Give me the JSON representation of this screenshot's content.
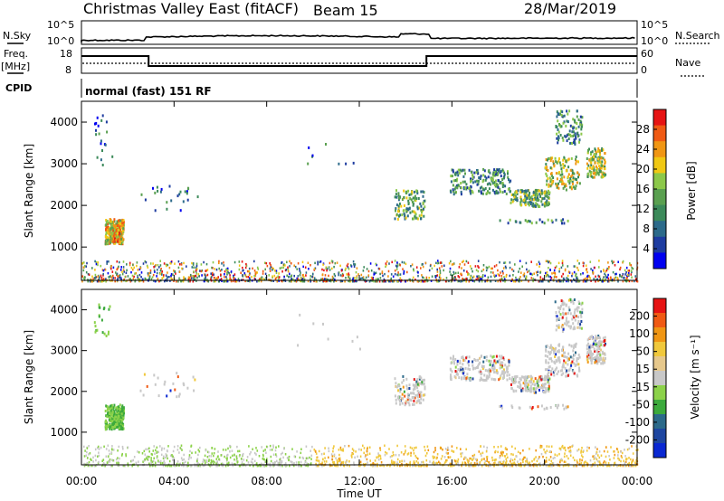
{
  "header": {
    "title": "Christmas Valley East (fitACF)",
    "beam": "Beam 15",
    "date": "28/Mar/2019"
  },
  "panels": {
    "nsky": {
      "left_label": "N.Sky",
      "right_label": "N.Search",
      "left_ticks": [
        "10^5",
        "10^0"
      ],
      "right_ticks": [
        "10^5",
        "10^0"
      ]
    },
    "freq": {
      "left_label_1": "Freq.",
      "left_label_2": "[MHz]",
      "right_label": "Nave",
      "left_ticks": [
        "18",
        "8"
      ],
      "right_ticks": [
        "60",
        "0"
      ]
    },
    "cpid": {
      "label": "CPID",
      "text": "normal (fast) 151 RF"
    }
  },
  "colors": {
    "power": [
      "#0000f0",
      "#1e3ca0",
      "#2c6a8a",
      "#3c8a5a",
      "#5aa050",
      "#8cc84a",
      "#f0c814",
      "#f09614",
      "#f05a14",
      "#e61414"
    ],
    "velocity": [
      "#e61414",
      "#f05a14",
      "#f09614",
      "#f0c83c",
      "#e6c88c",
      "#c8c8c8",
      "#8cd24a",
      "#3caa3c",
      "#2c6a8a",
      "#1e46a0",
      "#0a28d2"
    ]
  },
  "chart_data": [
    {
      "type": "heatmap",
      "name": "power",
      "x_ticks": [
        "00:00",
        "04:00",
        "08:00",
        "12:00",
        "16:00",
        "20:00",
        "00:00"
      ],
      "x_range_hours": [
        0,
        24
      ],
      "ylabel": "Slant Range [km]",
      "ylim": [
        200,
        4500
      ],
      "y_ticks": [
        1000,
        2000,
        3000,
        4000
      ],
      "colorbar_label": "Power [dB]",
      "colorbar_ticks": [
        "4",
        "8",
        "12",
        "16",
        "20",
        "24",
        "28"
      ],
      "colorbar_range": [
        0,
        30
      ]
    },
    {
      "type": "heatmap",
      "name": "velocity",
      "x_ticks": [
        "00:00",
        "04:00",
        "08:00",
        "12:00",
        "16:00",
        "20:00",
        "00:00"
      ],
      "xlabel": "Time UT",
      "ylabel": "Slant Range [km]",
      "ylim": [
        200,
        4500
      ],
      "y_ticks": [
        1000,
        2000,
        3000,
        4000
      ],
      "colorbar_label": "Velocity [m s⁻¹]",
      "colorbar_ticks": [
        "200",
        "100",
        "50",
        "15",
        "-15",
        "-50",
        "-100",
        "-200"
      ],
      "colorbar_range": [
        -250,
        250
      ]
    }
  ]
}
